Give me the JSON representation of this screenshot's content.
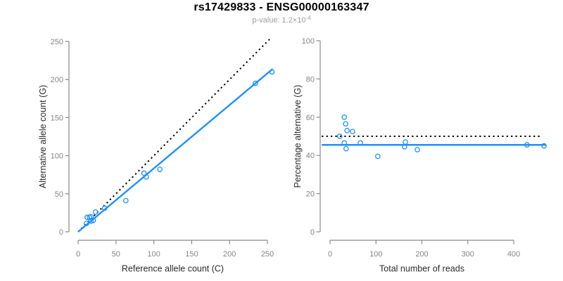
{
  "header": {
    "title": "rs17429833 - ENSG00000163347",
    "subtitle_prefix": "p-value: 1.2×10",
    "subtitle_exponent": "-4"
  },
  "colors": {
    "accent_blue": "#1E90FF",
    "reference_black": "#000000",
    "axis_line": "#8A8A8A",
    "tick_label": "#848484",
    "axis_title": "#2B2B2B",
    "subtitle_gray": "#9B9B9B"
  },
  "chart_data": [
    {
      "type": "scatter",
      "panel": "left",
      "xlabel": "Reference allele count (C)",
      "ylabel": "Alternative allele count (G)",
      "xlim": [
        0,
        250
      ],
      "ylim": [
        0,
        250
      ],
      "xticks": [
        0,
        50,
        100,
        150,
        200,
        250
      ],
      "yticks": [
        0,
        50,
        100,
        150,
        200,
        250
      ],
      "grid": false,
      "point_style": "open-circle",
      "points": [
        [
          11,
          11
        ],
        [
          12,
          19
        ],
        [
          15,
          19
        ],
        [
          17,
          20
        ],
        [
          23,
          26
        ],
        [
          17,
          14
        ],
        [
          20,
          15
        ],
        [
          35,
          31
        ],
        [
          63,
          41
        ],
        [
          90,
          72
        ],
        [
          87,
          77
        ],
        [
          108,
          82
        ],
        [
          234,
          195
        ],
        [
          256,
          210
        ]
      ],
      "lines": [
        {
          "name": "identity-line",
          "style": "dotted",
          "color": "#000000",
          "from": [
            0,
            0
          ],
          "to": [
            255.5,
            255.5
          ]
        },
        {
          "name": "fit-line",
          "style": "solid",
          "color": "#1E90FF",
          "from": [
            0,
            0
          ],
          "to": [
            257,
            214
          ]
        }
      ]
    },
    {
      "type": "scatter",
      "panel": "right",
      "xlabel": "Total number of reads",
      "ylabel": "Percentage alternative (G)",
      "xlim": [
        0,
        400
      ],
      "ylim": [
        0,
        100
      ],
      "xticks": [
        0,
        100,
        200,
        300,
        400
      ],
      "yticks": [
        0,
        20,
        40,
        60,
        80,
        100
      ],
      "grid": false,
      "point_style": "open-circle",
      "points": [
        [
          21,
          50
        ],
        [
          31,
          60
        ],
        [
          34,
          56.5
        ],
        [
          37,
          53
        ],
        [
          49,
          52.5
        ],
        [
          31,
          46.5
        ],
        [
          66,
          46.5
        ],
        [
          35,
          43.5
        ],
        [
          104,
          39.5
        ],
        [
          162,
          44.5
        ],
        [
          164,
          47
        ],
        [
          190,
          43
        ],
        [
          429,
          45.5
        ],
        [
          466,
          45
        ]
      ],
      "lines": [
        {
          "name": "null-line",
          "style": "dotted",
          "color": "#000000",
          "from": [
            -18,
            50
          ],
          "to": [
            458,
            50
          ]
        },
        {
          "name": "fit-line",
          "style": "solid",
          "color": "#1E90FF",
          "from": [
            -18,
            45.5
          ],
          "to": [
            470,
            45.5
          ]
        }
      ]
    }
  ]
}
